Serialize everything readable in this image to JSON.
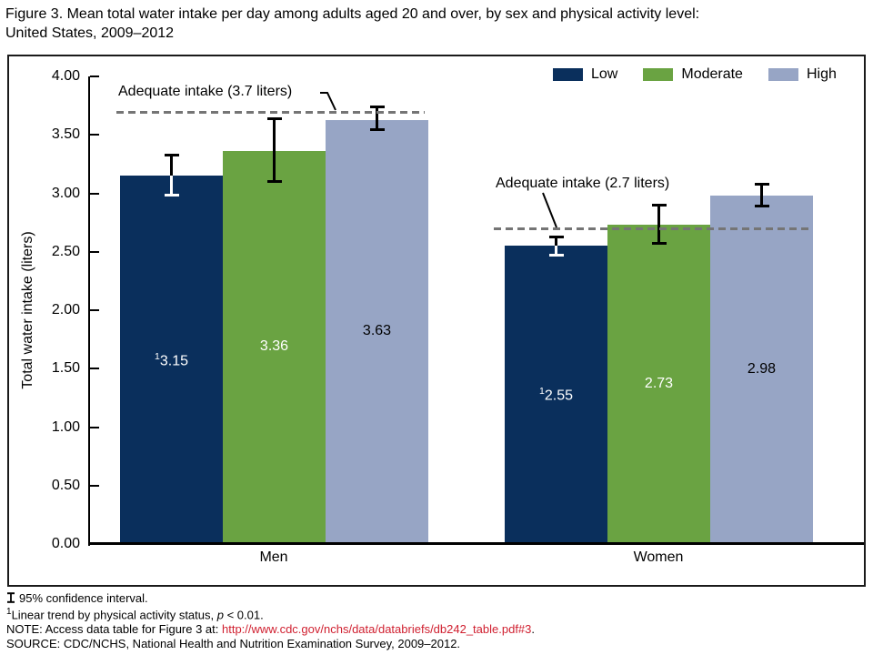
{
  "figure": {
    "title_line1": "Figure 3. Mean total water intake per day among adults aged 20 and over, by sex and physical activity level:",
    "title_line2": "United States, 2009–2012"
  },
  "legend": [
    {
      "label": "Low",
      "color": "#0a2f5c"
    },
    {
      "label": "Moderate",
      "color": "#6aa342"
    },
    {
      "label": "High",
      "color": "#97a5c5"
    }
  ],
  "chart_data": {
    "type": "bar",
    "title": "",
    "xlabel": "",
    "ylabel": "Total water intake (liters)",
    "ylim": [
      0,
      4
    ],
    "ytick_step": 0.5,
    "ytick_labels": [
      "4.00",
      "3.50",
      "3.00",
      "2.50",
      "2.00",
      "1.50",
      "1.00",
      "0.50",
      "0.00"
    ],
    "categories": [
      "Men",
      "Women"
    ],
    "grid": false,
    "legend_position": "top-right",
    "error_bar_meaning": "95% confidence interval",
    "series": [
      {
        "name": "Low",
        "color": "#0a2f5c",
        "value_label_color": "#ffffff",
        "error_color_on_bar": "#ffffff",
        "values": [
          3.15,
          2.55
        ],
        "value_labels": [
          "3.15",
          "2.55"
        ],
        "footnote_markers": [
          "1",
          "1"
        ],
        "ci": [
          [
            2.98,
            3.33
          ],
          [
            2.47,
            2.63
          ]
        ]
      },
      {
        "name": "Moderate",
        "color": "#6aa342",
        "value_label_color": "#ffffff",
        "error_color_on_bar": "#000000",
        "values": [
          3.36,
          2.73
        ],
        "value_labels": [
          "3.36",
          "2.73"
        ],
        "footnote_markers": [
          "",
          ""
        ],
        "ci": [
          [
            3.1,
            3.64
          ],
          [
            2.57,
            2.9
          ]
        ]
      },
      {
        "name": "High",
        "color": "#97a5c5",
        "value_label_color": "#000000",
        "error_color_on_bar": "#000000",
        "values": [
          3.63,
          2.98
        ],
        "value_labels": [
          "3.63",
          "2.98"
        ],
        "footnote_markers": [
          "",
          ""
        ],
        "ci": [
          [
            3.54,
            3.74
          ],
          [
            2.89,
            3.08
          ]
        ]
      }
    ],
    "reference_lines": [
      {
        "category": "Men",
        "value": 3.7,
        "label": "Adequate intake (3.7 liters)"
      },
      {
        "category": "Women",
        "value": 2.7,
        "label": "Adequate intake (2.7 liters)"
      }
    ]
  },
  "footnotes": {
    "ci": {
      "text": "95% confidence interval."
    },
    "trend": {
      "marker": "1",
      "text": "Linear trend by physical activity status, ",
      "p": "p",
      "rest": " < 0.01."
    },
    "note": {
      "prefix": "NOTE: Access data table for Figure 3 at: ",
      "link": "http://www.cdc.gov/nchs/data/databriefs/db242_table.pdf#3",
      "suffix": "."
    },
    "source": {
      "text": "SOURCE: CDC/NCHS, National Health and Nutrition Examination Survey, 2009–2012."
    }
  }
}
